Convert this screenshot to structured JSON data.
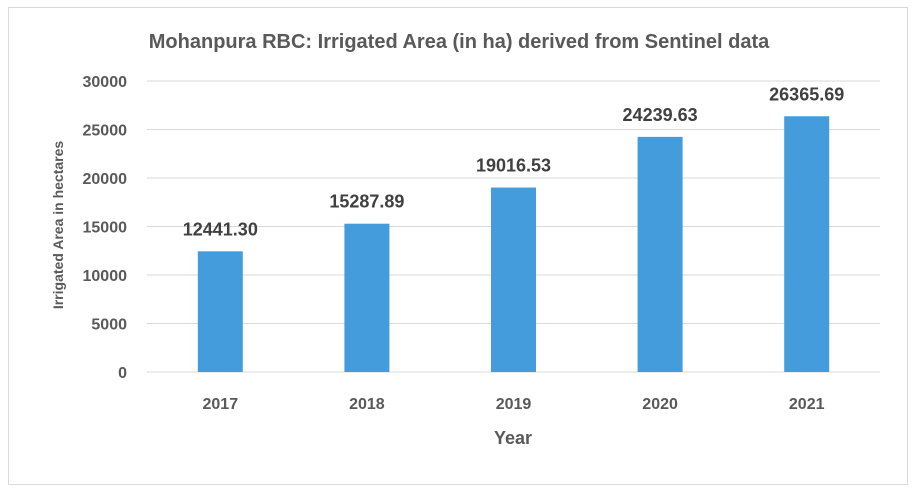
{
  "chart_data": {
    "type": "bar",
    "title": "Mohanpura RBC: Irrigated Area (in  ha) derived from Sentinel data",
    "xlabel": "Year",
    "ylabel": "Irrigated Area in hectares",
    "categories": [
      "2017",
      "2018",
      "2019",
      "2020",
      "2021"
    ],
    "values": [
      12441.3,
      15287.89,
      19016.53,
      24239.63,
      26365.69
    ],
    "data_labels": [
      "12441.30",
      "15287.89",
      "19016.53",
      "24239.63",
      "26365.69"
    ],
    "ylim": [
      0,
      30000
    ],
    "yticks": [
      0,
      5000,
      10000,
      15000,
      20000,
      25000,
      30000
    ],
    "grid": true,
    "legend": "none",
    "bar_color": "#449cdc"
  }
}
